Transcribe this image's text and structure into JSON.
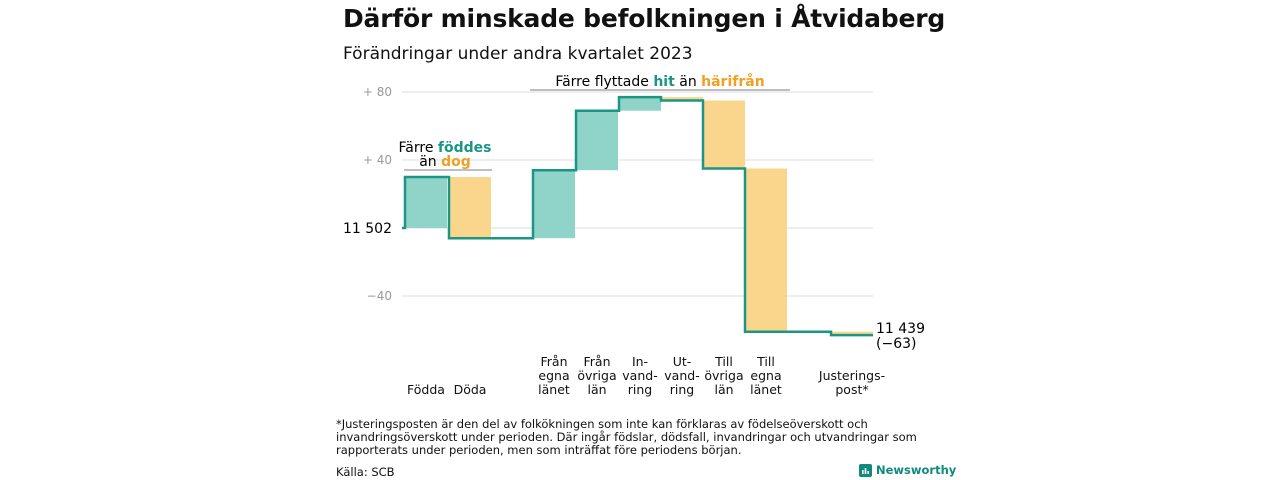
{
  "title": "Därför minskade befolkningen i Åtvidaberg",
  "subtitle": "Förändringar under andra kvartalet 2023",
  "footnote": "*Justeringsposten är den del av folkökningen som inte kan förklaras av födelseöverskott och invandringsöverskott under perioden. Där ingår födslar, dödsfall, invandringar och utvandringar som rapporterats under perioden, men som inträffat före periodens början.",
  "source": "Källa: SCB",
  "brand": "Newsworthy",
  "colors": {
    "increase": "#8fd3c9",
    "decrease": "#fad68c",
    "line": "#1a9683",
    "teal_text": "#1a9683",
    "orange_text": "#f0a024"
  },
  "annotations": {
    "birth_pre": "Färre",
    "birth_hl": "föddes",
    "birth_post": "än",
    "death_hl": "dog",
    "mig_pre": "Färre flyttade",
    "mig_hl1": "hit",
    "mig_mid": "än",
    "mig_hl2": "härifrån"
  },
  "chart_data": {
    "type": "waterfall",
    "title": "Därför minskade befolkningen i Åtvidaberg",
    "subtitle": "Förändringar under andra kvartalet 2023",
    "start_value": 11502,
    "start_label": "11  502",
    "end_value": 11439,
    "end_label": "11 439",
    "end_change_label": "(−63)",
    "ylim": [
      -65,
      85
    ],
    "yticks": [
      {
        "value": 80,
        "label": "+  80"
      },
      {
        "value": 40,
        "label": "+  40"
      },
      {
        "value": 0,
        "label": ""
      },
      {
        "value": -40,
        "label": "−40"
      }
    ],
    "grid": true,
    "steps": [
      {
        "category": [
          "Födda"
        ],
        "value": 30
      },
      {
        "category": [
          "Döda"
        ],
        "value": -36
      },
      {
        "category": [
          "Från",
          "egna",
          "länet"
        ],
        "value": 40
      },
      {
        "category": [
          "Från",
          "övriga",
          "län"
        ],
        "value": 35
      },
      {
        "category": [
          "In-",
          "vand-",
          "ring"
        ],
        "value": 8
      },
      {
        "category": [
          "Ut-",
          "vand-",
          "ring"
        ],
        "value": -2
      },
      {
        "category": [
          "Till",
          "övriga",
          "län"
        ],
        "value": -40
      },
      {
        "category": [
          "Till",
          "egna",
          "länet"
        ],
        "value": -96
      },
      {
        "category": [
          "Justerings-",
          "post*"
        ],
        "value": -2
      }
    ]
  }
}
